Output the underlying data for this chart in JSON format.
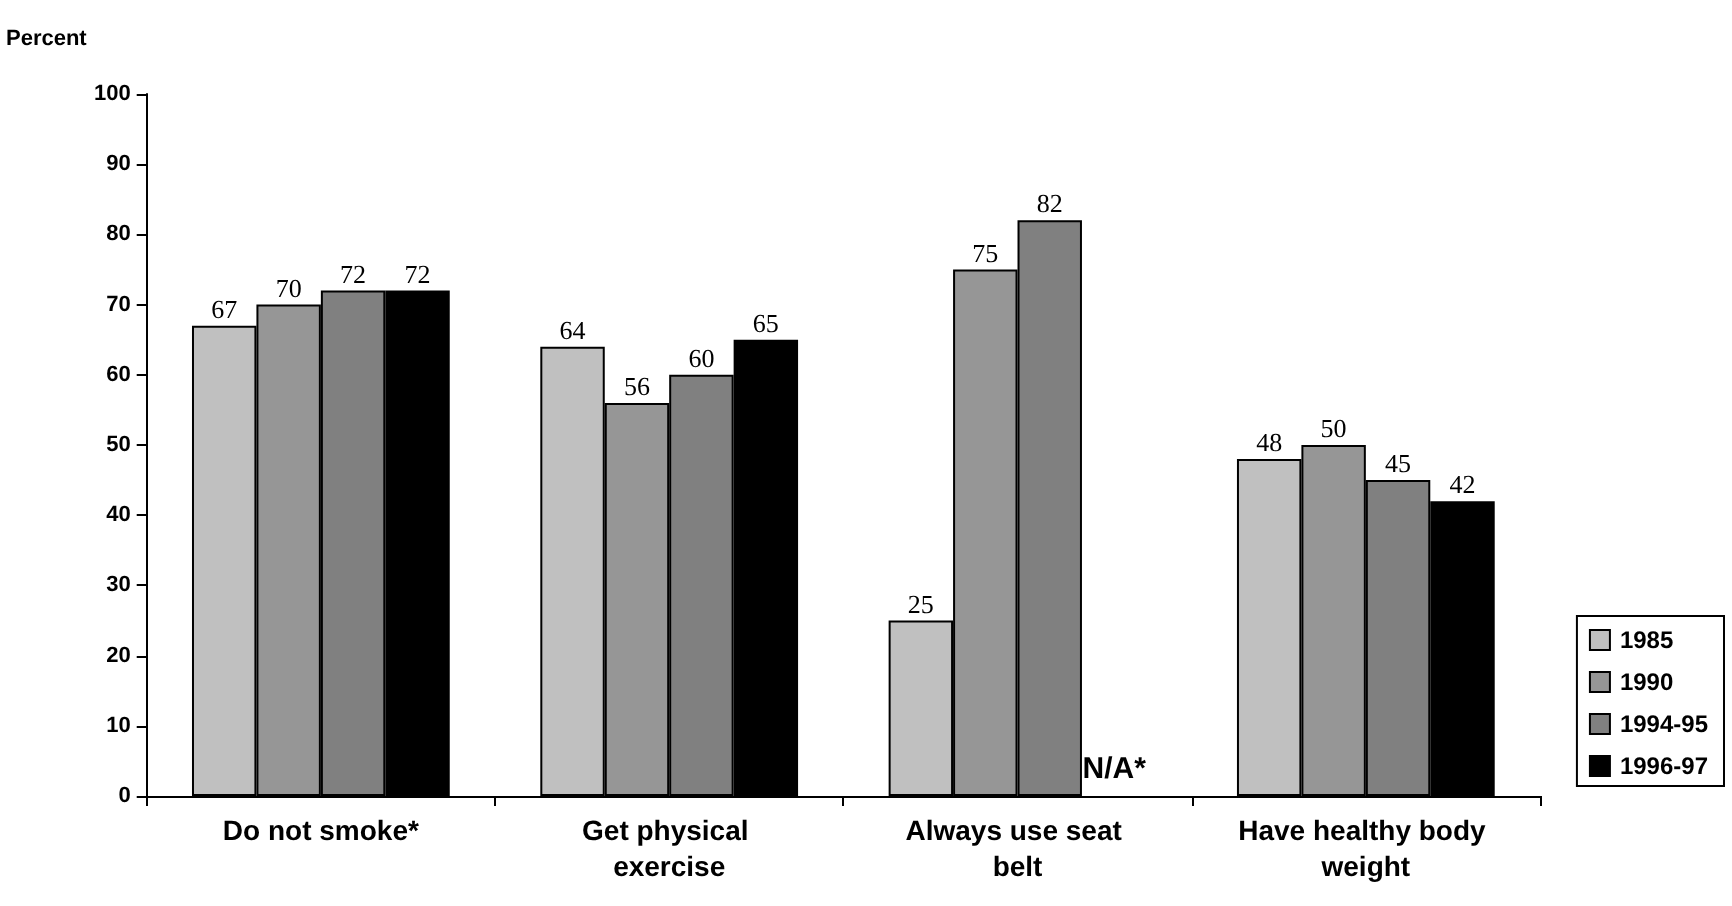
{
  "chart_data": {
    "type": "bar",
    "ylabel": "Percent",
    "categories": [
      "Do not smoke*",
      "Get physical exercise",
      "Always use seat belt",
      "Have healthy body weight"
    ],
    "series": [
      {
        "name": "1985",
        "color": "#c0c0c0",
        "values": [
          67,
          64,
          25,
          48
        ]
      },
      {
        "name": "1990",
        "color": "#969696",
        "values": [
          70,
          56,
          75,
          50
        ]
      },
      {
        "name": "1994-95",
        "color": "#808080",
        "values": [
          72,
          60,
          82,
          45
        ]
      },
      {
        "name": "1996-97",
        "color": "#000000",
        "values": [
          72,
          65,
          null,
          42
        ]
      }
    ],
    "ylim": [
      0,
      100
    ],
    "yticks": [
      0,
      10,
      20,
      30,
      40,
      50,
      60,
      70,
      80,
      90,
      100
    ],
    "data_labels": true,
    "grid": false,
    "legend": "bottom right",
    "annotations": [
      {
        "text": "N/A*",
        "x": "Always use seat belt",
        "y": 0
      }
    ]
  }
}
